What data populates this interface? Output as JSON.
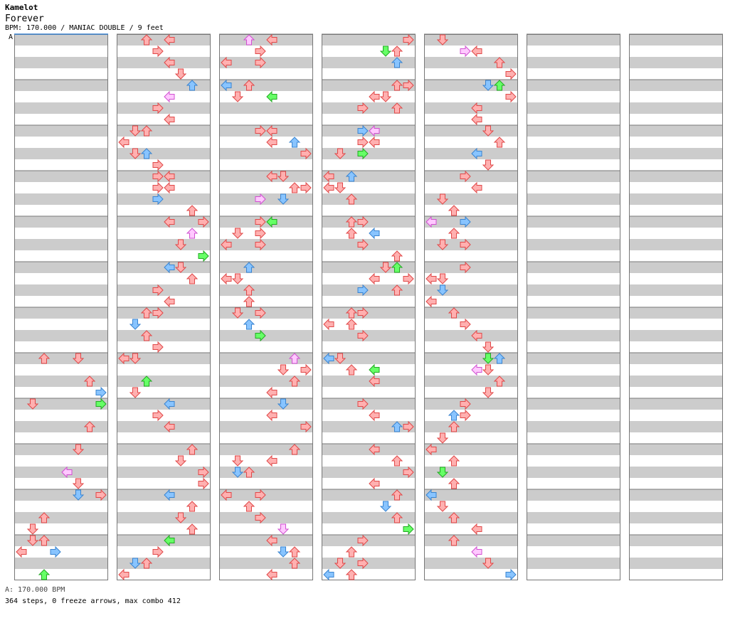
{
  "header": {
    "artist": "Kamelot",
    "title": "Forever",
    "meta": "BPM: 170.000 / MANIAC DOUBLE / 9 feet",
    "bpm_marker": "A"
  },
  "footer": {
    "bpm_line": "A: 170.000 BPM",
    "stats_line": "364 steps, 0 freeze arrows, max combo 412"
  },
  "colors": {
    "red": "#ffb0b0",
    "red_stroke": "#e04848",
    "blue": "#88c4ff",
    "blue_stroke": "#3a84d0",
    "green": "#66ff66",
    "green_stroke": "#22aa22",
    "pink": "#ffc8ff",
    "pink_stroke": "#d050d0",
    "stripe": "#cccccc",
    "border": "#777777"
  },
  "chart_data": {
    "type": "step-chart",
    "columns": 7,
    "measures_per_column": 12,
    "lanes": 8,
    "rows_per_measure": 4,
    "notes": [
      [
        0,
        7,
        0,
        2
      ],
      [
        0,
        7,
        0,
        5
      ],
      [
        0,
        7,
        2,
        6
      ],
      [
        0,
        7,
        3,
        7
      ],
      [
        0,
        8,
        0,
        1
      ],
      [
        0,
        8,
        0,
        7
      ],
      [
        0,
        8,
        2,
        6
      ],
      [
        0,
        9,
        0,
        5
      ],
      [
        0,
        9,
        2,
        4
      ],
      [
        0,
        9,
        3,
        5
      ],
      [
        0,
        10,
        0,
        5
      ],
      [
        0,
        10,
        0,
        7
      ],
      [
        0,
        10,
        2,
        2
      ],
      [
        0,
        10,
        3,
        1
      ],
      [
        0,
        11,
        0,
        2
      ],
      [
        0,
        11,
        0,
        1
      ],
      [
        0,
        11,
        1,
        0
      ],
      [
        0,
        11,
        1,
        3
      ],
      [
        0,
        11,
        3,
        2
      ],
      [
        1,
        0,
        0,
        2
      ],
      [
        1,
        0,
        0,
        4
      ],
      [
        1,
        0,
        1,
        3
      ],
      [
        1,
        0,
        2,
        4
      ],
      [
        1,
        0,
        3,
        5
      ],
      [
        1,
        1,
        0,
        6
      ],
      [
        1,
        1,
        1,
        4
      ],
      [
        1,
        1,
        2,
        3
      ],
      [
        1,
        1,
        3,
        4
      ],
      [
        1,
        2,
        0,
        1
      ],
      [
        1,
        2,
        0,
        2
      ],
      [
        1,
        2,
        1,
        0
      ],
      [
        1,
        2,
        2,
        2
      ],
      [
        1,
        2,
        2,
        1
      ],
      [
        1,
        2,
        3,
        3
      ],
      [
        1,
        3,
        0,
        3
      ],
      [
        1,
        3,
        0,
        4
      ],
      [
        1,
        3,
        1,
        3
      ],
      [
        1,
        3,
        1,
        4
      ],
      [
        1,
        3,
        2,
        3
      ],
      [
        1,
        3,
        3,
        6
      ],
      [
        1,
        4,
        0,
        4
      ],
      [
        1,
        4,
        0,
        7
      ],
      [
        1,
        4,
        1,
        6
      ],
      [
        1,
        4,
        2,
        5
      ],
      [
        1,
        4,
        3,
        7
      ],
      [
        1,
        5,
        0,
        4
      ],
      [
        1,
        5,
        0,
        5
      ],
      [
        1,
        5,
        1,
        6
      ],
      [
        1,
        5,
        2,
        3
      ],
      [
        1,
        5,
        3,
        4
      ],
      [
        1,
        6,
        0,
        2
      ],
      [
        1,
        6,
        0,
        3
      ],
      [
        1,
        6,
        1,
        1
      ],
      [
        1,
        6,
        2,
        2
      ],
      [
        1,
        6,
        3,
        3
      ],
      [
        1,
        7,
        0,
        0
      ],
      [
        1,
        7,
        0,
        1
      ],
      [
        1,
        7,
        2,
        2
      ],
      [
        1,
        7,
        3,
        1
      ],
      [
        1,
        8,
        0,
        4
      ],
      [
        1,
        8,
        1,
        3
      ],
      [
        1,
        8,
        2,
        4
      ],
      [
        1,
        9,
        0,
        6
      ],
      [
        1,
        9,
        1,
        5
      ],
      [
        1,
        9,
        2,
        7
      ],
      [
        1,
        9,
        3,
        7
      ],
      [
        1,
        10,
        0,
        4
      ],
      [
        1,
        10,
        1,
        6
      ],
      [
        1,
        10,
        2,
        5
      ],
      [
        1,
        10,
        3,
        6
      ],
      [
        1,
        11,
        0,
        4
      ],
      [
        1,
        11,
        1,
        3
      ],
      [
        1,
        11,
        2,
        2
      ],
      [
        1,
        11,
        2,
        1
      ],
      [
        1,
        11,
        3,
        0
      ],
      [
        2,
        0,
        0,
        4
      ],
      [
        2,
        0,
        0,
        2
      ],
      [
        2,
        0,
        1,
        3
      ],
      [
        2,
        0,
        2,
        0
      ],
      [
        2,
        0,
        2,
        3
      ],
      [
        2,
        1,
        0,
        0
      ],
      [
        2,
        1,
        0,
        2
      ],
      [
        2,
        1,
        1,
        1
      ],
      [
        2,
        1,
        1,
        4
      ],
      [
        2,
        2,
        0,
        3
      ],
      [
        2,
        2,
        0,
        4
      ],
      [
        2,
        2,
        1,
        4
      ],
      [
        2,
        2,
        1,
        6
      ],
      [
        2,
        2,
        2,
        7
      ],
      [
        2,
        3,
        0,
        4
      ],
      [
        2,
        3,
        0,
        5
      ],
      [
        2,
        3,
        1,
        6
      ],
      [
        2,
        3,
        1,
        7
      ],
      [
        2,
        3,
        2,
        3
      ],
      [
        2,
        3,
        2,
        5
      ],
      [
        2,
        4,
        0,
        3
      ],
      [
        2,
        4,
        0,
        4
      ],
      [
        2,
        4,
        1,
        1
      ],
      [
        2,
        4,
        1,
        3
      ],
      [
        2,
        4,
        2,
        0
      ],
      [
        2,
        4,
        2,
        3
      ],
      [
        2,
        5,
        0,
        2
      ],
      [
        2,
        5,
        1,
        1
      ],
      [
        2,
        5,
        1,
        0
      ],
      [
        2,
        5,
        2,
        2
      ],
      [
        2,
        5,
        3,
        2
      ],
      [
        2,
        6,
        0,
        1
      ],
      [
        2,
        6,
        0,
        3
      ],
      [
        2,
        6,
        1,
        2
      ],
      [
        2,
        6,
        2,
        3
      ],
      [
        2,
        7,
        0,
        6
      ],
      [
        2,
        7,
        1,
        5
      ],
      [
        2,
        7,
        1,
        7
      ],
      [
        2,
        7,
        2,
        6
      ],
      [
        2,
        7,
        3,
        4
      ],
      [
        2,
        8,
        0,
        5
      ],
      [
        2,
        8,
        1,
        4
      ],
      [
        2,
        8,
        2,
        7
      ],
      [
        2,
        9,
        0,
        6
      ],
      [
        2,
        9,
        1,
        1
      ],
      [
        2,
        9,
        1,
        4
      ],
      [
        2,
        9,
        2,
        2
      ],
      [
        2,
        9,
        2,
        1
      ],
      [
        2,
        10,
        0,
        0
      ],
      [
        2,
        10,
        0,
        3
      ],
      [
        2,
        10,
        1,
        2
      ],
      [
        2,
        10,
        2,
        3
      ],
      [
        2,
        10,
        3,
        5
      ],
      [
        2,
        11,
        0,
        4
      ],
      [
        2,
        11,
        1,
        5
      ],
      [
        2,
        11,
        1,
        6
      ],
      [
        2,
        11,
        2,
        6
      ],
      [
        2,
        11,
        3,
        4
      ],
      [
        3,
        0,
        0,
        7
      ],
      [
        3,
        0,
        1,
        6
      ],
      [
        3,
        0,
        1,
        5
      ],
      [
        3,
        0,
        2,
        6
      ],
      [
        3,
        1,
        0,
        6
      ],
      [
        3,
        1,
        0,
        7
      ],
      [
        3,
        1,
        1,
        5
      ],
      [
        3,
        1,
        1,
        4
      ],
      [
        3,
        1,
        2,
        3
      ],
      [
        3,
        1,
        2,
        6
      ],
      [
        3,
        2,
        0,
        3
      ],
      [
        3,
        2,
        0,
        4
      ],
      [
        3,
        2,
        1,
        3
      ],
      [
        3,
        2,
        1,
        4
      ],
      [
        3,
        2,
        2,
        1
      ],
      [
        3,
        2,
        2,
        3
      ],
      [
        3,
        3,
        0,
        0
      ],
      [
        3,
        3,
        0,
        2
      ],
      [
        3,
        3,
        1,
        0
      ],
      [
        3,
        3,
        1,
        1
      ],
      [
        3,
        3,
        2,
        2
      ],
      [
        3,
        4,
        0,
        2
      ],
      [
        3,
        4,
        0,
        3
      ],
      [
        3,
        4,
        1,
        2
      ],
      [
        3,
        4,
        1,
        4
      ],
      [
        3,
        4,
        2,
        3
      ],
      [
        3,
        4,
        3,
        6
      ],
      [
        3,
        5,
        0,
        5
      ],
      [
        3,
        5,
        0,
        6
      ],
      [
        3,
        5,
        1,
        4
      ],
      [
        3,
        5,
        1,
        7
      ],
      [
        3,
        5,
        2,
        3
      ],
      [
        3,
        5,
        2,
        6
      ],
      [
        3,
        6,
        0,
        2
      ],
      [
        3,
        6,
        0,
        3
      ],
      [
        3,
        6,
        1,
        0
      ],
      [
        3,
        6,
        1,
        2
      ],
      [
        3,
        6,
        2,
        3
      ],
      [
        3,
        7,
        0,
        0
      ],
      [
        3,
        7,
        0,
        1
      ],
      [
        3,
        7,
        1,
        2
      ],
      [
        3,
        7,
        1,
        4
      ],
      [
        3,
        7,
        2,
        4
      ],
      [
        3,
        8,
        0,
        3
      ],
      [
        3,
        8,
        1,
        4
      ],
      [
        3,
        8,
        2,
        6
      ],
      [
        3,
        8,
        2,
        7
      ],
      [
        3,
        9,
        0,
        4
      ],
      [
        3,
        9,
        1,
        6
      ],
      [
        3,
        9,
        2,
        7
      ],
      [
        3,
        9,
        3,
        4
      ],
      [
        3,
        10,
        0,
        6
      ],
      [
        3,
        10,
        1,
        5
      ],
      [
        3,
        10,
        2,
        6
      ],
      [
        3,
        10,
        3,
        7
      ],
      [
        3,
        11,
        0,
        3
      ],
      [
        3,
        11,
        1,
        2
      ],
      [
        3,
        11,
        2,
        1
      ],
      [
        3,
        11,
        2,
        3
      ],
      [
        3,
        11,
        3,
        0
      ],
      [
        3,
        11,
        3,
        2
      ],
      [
        4,
        0,
        0,
        1
      ],
      [
        4,
        0,
        1,
        3
      ],
      [
        4,
        0,
        1,
        4
      ],
      [
        4,
        0,
        2,
        6
      ],
      [
        4,
        0,
        3,
        7
      ],
      [
        4,
        1,
        0,
        5
      ],
      [
        4,
        1,
        0,
        6
      ],
      [
        4,
        1,
        1,
        7
      ],
      [
        4,
        1,
        2,
        4
      ],
      [
        4,
        1,
        3,
        4
      ],
      [
        4,
        2,
        0,
        5
      ],
      [
        4,
        2,
        1,
        6
      ],
      [
        4,
        2,
        2,
        4
      ],
      [
        4,
        2,
        3,
        5
      ],
      [
        4,
        3,
        0,
        3
      ],
      [
        4,
        3,
        1,
        4
      ],
      [
        4,
        3,
        2,
        1
      ],
      [
        4,
        3,
        3,
        2
      ],
      [
        4,
        4,
        0,
        0
      ],
      [
        4,
        4,
        0,
        3
      ],
      [
        4,
        4,
        1,
        2
      ],
      [
        4,
        4,
        2,
        1
      ],
      [
        4,
        4,
        2,
        3
      ],
      [
        4,
        5,
        0,
        3
      ],
      [
        4,
        5,
        1,
        1
      ],
      [
        4,
        5,
        1,
        0
      ],
      [
        4,
        5,
        2,
        1
      ],
      [
        4,
        5,
        3,
        0
      ],
      [
        4,
        6,
        0,
        2
      ],
      [
        4,
        6,
        1,
        3
      ],
      [
        4,
        6,
        2,
        4
      ],
      [
        4,
        6,
        3,
        5
      ],
      [
        4,
        7,
        0,
        5
      ],
      [
        4,
        7,
        0,
        6
      ],
      [
        4,
        7,
        1,
        5
      ],
      [
        4,
        7,
        1,
        4
      ],
      [
        4,
        7,
        2,
        6
      ],
      [
        4,
        7,
        3,
        5
      ],
      [
        4,
        8,
        0,
        3
      ],
      [
        4,
        8,
        1,
        3
      ],
      [
        4,
        8,
        1,
        2
      ],
      [
        4,
        8,
        2,
        2
      ],
      [
        4,
        8,
        3,
        1
      ],
      [
        4,
        9,
        0,
        0
      ],
      [
        4,
        9,
        1,
        2
      ],
      [
        4,
        9,
        2,
        1
      ],
      [
        4,
        9,
        3,
        2
      ],
      [
        4,
        10,
        0,
        0
      ],
      [
        4,
        10,
        1,
        1
      ],
      [
        4,
        10,
        2,
        2
      ],
      [
        4,
        10,
        3,
        4
      ],
      [
        4,
        11,
        0,
        2
      ],
      [
        4,
        11,
        1,
        4
      ],
      [
        4,
        11,
        2,
        5
      ],
      [
        4,
        11,
        3,
        7
      ]
    ]
  }
}
